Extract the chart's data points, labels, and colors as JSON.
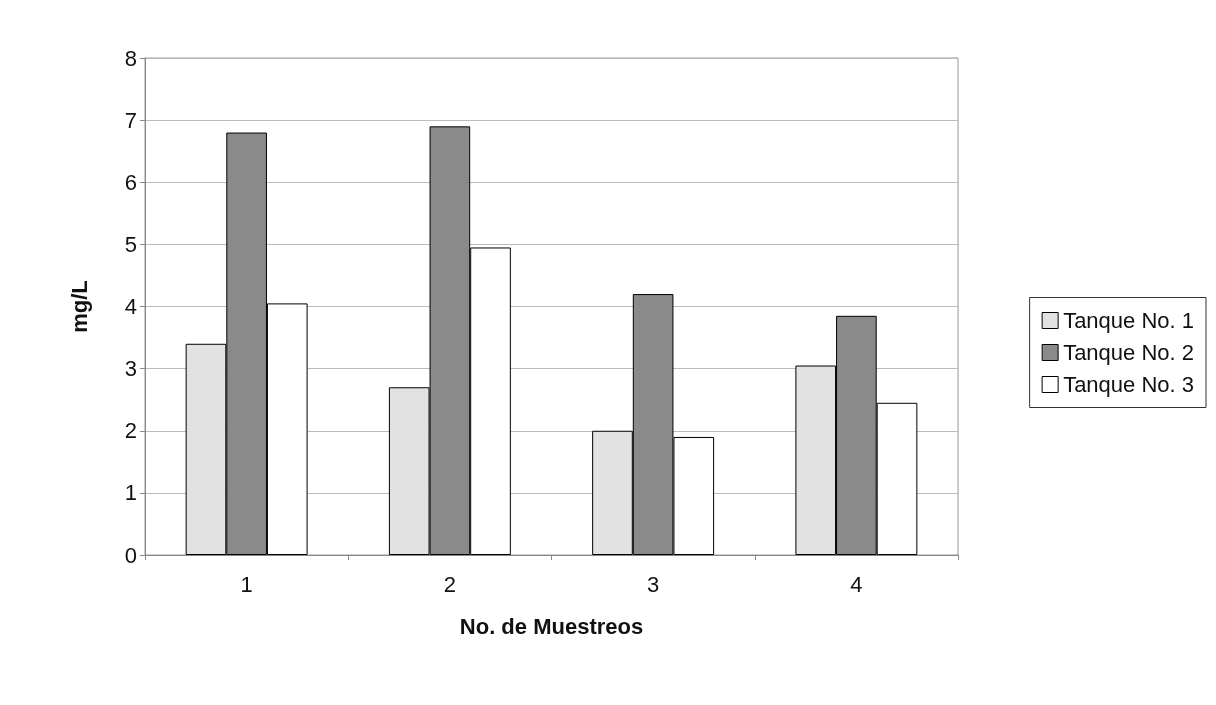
{
  "chart_data": {
    "type": "bar",
    "xlabel": "No. de Muestreos",
    "ylabel": "mg/L",
    "categories": [
      "1",
      "2",
      "3",
      "4"
    ],
    "series": [
      {
        "name": "Tanque No. 1",
        "color": "#e2e2e2",
        "values": [
          3.4,
          2.7,
          2.0,
          3.05
        ]
      },
      {
        "name": "Tanque No. 2",
        "color": "#8a8a8a",
        "values": [
          6.8,
          6.9,
          4.2,
          3.85
        ]
      },
      {
        "name": "Tanque No. 3",
        "color": "#ffffff",
        "values": [
          4.05,
          4.95,
          1.9,
          2.45
        ]
      }
    ],
    "ylim": [
      0,
      8
    ],
    "yticks": [
      0,
      1,
      2,
      3,
      4,
      5,
      6,
      7,
      8
    ],
    "grid": "y",
    "legend": "right"
  }
}
